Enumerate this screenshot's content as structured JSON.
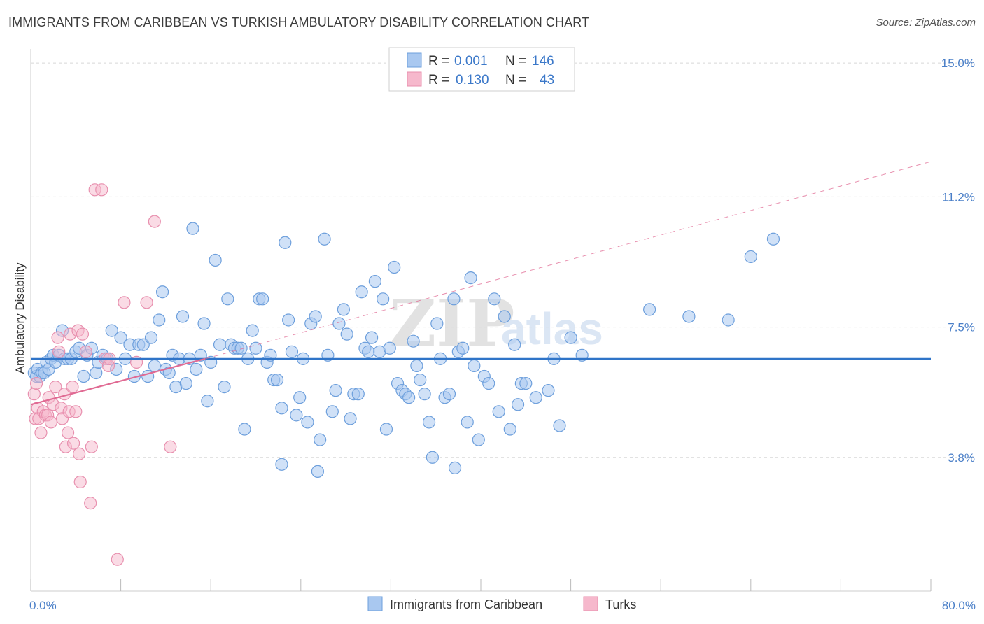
{
  "title": "IMMIGRANTS FROM CARIBBEAN VS TURKISH AMBULATORY DISABILITY CORRELATION CHART",
  "source": "Source: ZipAtlas.com",
  "watermark": {
    "part1": "ZIP",
    "part2": "atlas"
  },
  "colors": {
    "blue_fill": "#a9c8f0",
    "blue_stroke": "#6d9fdc",
    "blue_line": "#2f74c8",
    "pink_fill": "#f6b8cc",
    "pink_stroke": "#e88fae",
    "pink_line": "#e06a93",
    "grid": "#d8d8d8",
    "tick_text": "#4a7fc8"
  },
  "legend": {
    "rows": [
      {
        "r_label": "R =",
        "r_value": "0.001",
        "n_label": "N =",
        "n_value": "146",
        "series": "blue"
      },
      {
        "r_label": "R =",
        "r_value": "0.130",
        "n_label": "N =",
        "n_value": "43",
        "series": "pink"
      }
    ]
  },
  "bottom_legend": [
    {
      "label": "Immigrants from Caribbean",
      "series": "blue"
    },
    {
      "label": "Turks",
      "series": "pink"
    }
  ],
  "chart_data": {
    "type": "scatter",
    "title": "IMMIGRANTS FROM CARIBBEAN VS TURKISH AMBULATORY DISABILITY CORRELATION CHART",
    "xlabel": "",
    "ylabel": "Ambulatory Disability",
    "xlim": [
      0,
      80
    ],
    "ylim": [
      0,
      15.4
    ],
    "x_tick_labels": [
      {
        "value": 0,
        "label": "0.0%"
      },
      {
        "value": 80,
        "label": "80.0%"
      }
    ],
    "x_minor_ticks": [
      0,
      8,
      16,
      24,
      32,
      40,
      48,
      56,
      64,
      72,
      80
    ],
    "y_tick_labels": [
      {
        "value": 3.8,
        "label": "3.8%"
      },
      {
        "value": 7.5,
        "label": "7.5%"
      },
      {
        "value": 11.2,
        "label": "11.2%"
      },
      {
        "value": 15.0,
        "label": "15.0%"
      }
    ],
    "grid": true,
    "legend_position": "top-center",
    "series": [
      {
        "name": "Immigrants from Caribbean",
        "color": "#a9c8f0",
        "trend": {
          "x": [
            0,
            80
          ],
          "y": [
            6.6,
            6.6
          ],
          "style": "solid"
        },
        "points": [
          [
            0.3,
            6.2
          ],
          [
            0.5,
            6.1
          ],
          [
            0.6,
            6.3
          ],
          [
            0.8,
            6.1
          ],
          [
            1.0,
            6.2
          ],
          [
            1.2,
            6.2
          ],
          [
            1.4,
            6.5
          ],
          [
            1.6,
            6.3
          ],
          [
            1.8,
            6.6
          ],
          [
            2.0,
            6.7
          ],
          [
            2.2,
            6.5
          ],
          [
            2.5,
            6.7
          ],
          [
            2.8,
            7.4
          ],
          [
            3.0,
            6.6
          ],
          [
            3.3,
            6.6
          ],
          [
            3.6,
            6.6
          ],
          [
            4.0,
            6.8
          ],
          [
            4.3,
            6.9
          ],
          [
            4.7,
            6.1
          ],
          [
            5.0,
            6.7
          ],
          [
            5.4,
            6.9
          ],
          [
            5.8,
            6.2
          ],
          [
            6.0,
            6.5
          ],
          [
            6.4,
            6.7
          ],
          [
            6.8,
            6.6
          ],
          [
            7.2,
            7.4
          ],
          [
            7.6,
            6.3
          ],
          [
            8.0,
            7.2
          ],
          [
            8.4,
            6.6
          ],
          [
            8.8,
            7.0
          ],
          [
            9.2,
            6.1
          ],
          [
            9.6,
            7.0
          ],
          [
            10.0,
            7.0
          ],
          [
            10.4,
            6.1
          ],
          [
            10.7,
            7.2
          ],
          [
            11.0,
            6.4
          ],
          [
            11.4,
            7.7
          ],
          [
            11.7,
            8.5
          ],
          [
            12.0,
            6.3
          ],
          [
            12.3,
            6.2
          ],
          [
            12.6,
            6.7
          ],
          [
            12.9,
            5.8
          ],
          [
            13.2,
            6.6
          ],
          [
            13.5,
            7.8
          ],
          [
            13.8,
            5.9
          ],
          [
            14.1,
            6.6
          ],
          [
            14.4,
            10.3
          ],
          [
            14.7,
            6.3
          ],
          [
            15.1,
            6.7
          ],
          [
            15.4,
            7.6
          ],
          [
            15.7,
            5.4
          ],
          [
            16.0,
            6.5
          ],
          [
            16.4,
            9.4
          ],
          [
            16.8,
            7.0
          ],
          [
            17.2,
            5.8
          ],
          [
            17.5,
            8.3
          ],
          [
            17.8,
            7.0
          ],
          [
            18.1,
            6.9
          ],
          [
            18.4,
            6.9
          ],
          [
            18.7,
            6.9
          ],
          [
            19.0,
            4.6
          ],
          [
            19.3,
            6.6
          ],
          [
            19.7,
            7.4
          ],
          [
            20.0,
            6.9
          ],
          [
            20.3,
            8.3
          ],
          [
            20.6,
            8.3
          ],
          [
            21.0,
            6.5
          ],
          [
            21.3,
            6.7
          ],
          [
            21.6,
            6.0
          ],
          [
            21.9,
            6.0
          ],
          [
            22.3,
            5.2
          ],
          [
            22.6,
            9.9
          ],
          [
            22.9,
            7.7
          ],
          [
            23.2,
            6.8
          ],
          [
            23.6,
            5.0
          ],
          [
            23.9,
            5.5
          ],
          [
            24.2,
            6.6
          ],
          [
            24.6,
            4.8
          ],
          [
            24.9,
            7.6
          ],
          [
            25.3,
            7.8
          ],
          [
            25.7,
            4.3
          ],
          [
            26.1,
            10.0
          ],
          [
            26.4,
            6.7
          ],
          [
            26.8,
            5.1
          ],
          [
            27.1,
            5.7
          ],
          [
            27.4,
            7.6
          ],
          [
            27.8,
            8.0
          ],
          [
            28.1,
            7.3
          ],
          [
            28.4,
            4.9
          ],
          [
            28.7,
            5.6
          ],
          [
            29.1,
            5.6
          ],
          [
            29.4,
            8.5
          ],
          [
            29.7,
            6.9
          ],
          [
            30.0,
            6.8
          ],
          [
            30.3,
            7.2
          ],
          [
            30.6,
            8.8
          ],
          [
            31.0,
            6.8
          ],
          [
            31.3,
            8.3
          ],
          [
            31.6,
            4.6
          ],
          [
            31.9,
            6.9
          ],
          [
            32.3,
            9.2
          ],
          [
            32.6,
            5.9
          ],
          [
            33.0,
            5.7
          ],
          [
            33.3,
            5.6
          ],
          [
            33.6,
            5.5
          ],
          [
            34.0,
            7.1
          ],
          [
            34.3,
            6.4
          ],
          [
            34.6,
            6.0
          ],
          [
            35.0,
            5.6
          ],
          [
            35.4,
            4.8
          ],
          [
            35.7,
            3.8
          ],
          [
            36.1,
            7.6
          ],
          [
            36.4,
            6.6
          ],
          [
            36.8,
            5.5
          ],
          [
            37.2,
            5.6
          ],
          [
            37.6,
            8.3
          ],
          [
            38.0,
            6.8
          ],
          [
            38.4,
            6.9
          ],
          [
            38.8,
            4.8
          ],
          [
            39.1,
            8.9
          ],
          [
            39.4,
            6.4
          ],
          [
            39.8,
            4.3
          ],
          [
            40.3,
            6.1
          ],
          [
            40.7,
            5.9
          ],
          [
            41.2,
            8.3
          ],
          [
            41.6,
            5.1
          ],
          [
            42.1,
            7.8
          ],
          [
            42.6,
            4.6
          ],
          [
            43.0,
            7.0
          ],
          [
            43.6,
            5.9
          ],
          [
            44.0,
            5.9
          ],
          [
            44.9,
            5.5
          ],
          [
            46.0,
            5.7
          ],
          [
            47.0,
            4.7
          ],
          [
            48.0,
            7.2
          ],
          [
            49.0,
            6.7
          ],
          [
            55.0,
            8.0
          ],
          [
            58.5,
            7.8
          ],
          [
            62.0,
            7.7
          ],
          [
            64.0,
            9.5
          ],
          [
            66.0,
            10.0
          ],
          [
            22.3,
            3.6
          ],
          [
            25.5,
            3.4
          ],
          [
            37.7,
            3.5
          ],
          [
            43.3,
            5.3
          ],
          [
            46.5,
            6.6
          ]
        ]
      },
      {
        "name": "Turks",
        "color": "#f6b8cc",
        "trend": {
          "x": [
            0,
            15.5
          ],
          "y": [
            5.3,
            6.6
          ],
          "style": "solid",
          "extension": {
            "x": [
              15.5,
              80
            ],
            "y": [
              6.6,
              12.2
            ],
            "style": "dashed"
          }
        },
        "points": [
          [
            0.3,
            5.6
          ],
          [
            0.4,
            4.9
          ],
          [
            0.5,
            5.9
          ],
          [
            0.6,
            5.2
          ],
          [
            0.7,
            4.9
          ],
          [
            0.9,
            4.5
          ],
          [
            1.1,
            5.1
          ],
          [
            1.3,
            5.0
          ],
          [
            1.5,
            5.0
          ],
          [
            1.6,
            5.5
          ],
          [
            1.8,
            4.8
          ],
          [
            2.0,
            5.3
          ],
          [
            2.2,
            5.8
          ],
          [
            2.4,
            7.2
          ],
          [
            2.5,
            6.8
          ],
          [
            2.7,
            5.2
          ],
          [
            2.8,
            4.9
          ],
          [
            3.0,
            5.6
          ],
          [
            3.1,
            4.1
          ],
          [
            3.3,
            4.5
          ],
          [
            3.4,
            5.1
          ],
          [
            3.5,
            7.3
          ],
          [
            3.7,
            5.8
          ],
          [
            3.8,
            4.2
          ],
          [
            4.0,
            5.1
          ],
          [
            4.2,
            7.4
          ],
          [
            4.3,
            3.9
          ],
          [
            4.4,
            3.1
          ],
          [
            4.6,
            7.3
          ],
          [
            4.9,
            6.8
          ],
          [
            5.3,
            2.5
          ],
          [
            5.4,
            4.1
          ],
          [
            5.7,
            11.4
          ],
          [
            6.3,
            11.4
          ],
          [
            6.6,
            6.6
          ],
          [
            6.9,
            6.4
          ],
          [
            7.0,
            6.6
          ],
          [
            7.7,
            0.9
          ],
          [
            8.3,
            8.2
          ],
          [
            9.4,
            6.5
          ],
          [
            10.3,
            8.2
          ],
          [
            11.0,
            10.5
          ],
          [
            12.4,
            4.1
          ]
        ]
      }
    ]
  }
}
